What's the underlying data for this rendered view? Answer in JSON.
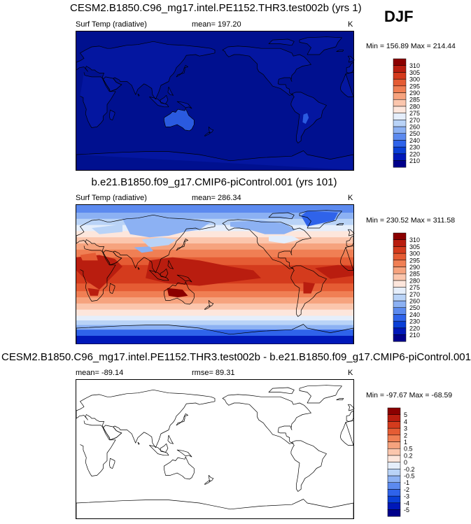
{
  "season": "DJF",
  "colors": {
    "field_palette": [
      "#00008b",
      "#0018b9",
      "#0a3fd6",
      "#2f63ea",
      "#5c8aef",
      "#8cb1f3",
      "#b9d3f7",
      "#e5eefb",
      "#fde6dc",
      "#fbc6ad",
      "#f6a37e",
      "#f07f54",
      "#e55c34",
      "#d43b1d",
      "#b91d0f",
      "#8b0000"
    ],
    "diff_palette": [
      "#00008b",
      "#0018b9",
      "#0a3fd6",
      "#2f63ea",
      "#5c8aef",
      "#8cb1f3",
      "#b9d3f7",
      "#e5eefb",
      "#fde6dc",
      "#fbc6ad",
      "#f6a37e",
      "#f07f54",
      "#e55c34",
      "#d43b1d",
      "#b91d0f",
      "#8b0000"
    ],
    "ocean_panel1": "#00108f",
    "land_panel1": "#0416a0",
    "australia_panel1": "#2a5ae0",
    "coast": "#000000"
  },
  "panels": [
    {
      "title": "CESM2.B1850.C96_mg17.intel.PE1152.THR3.test002b (yrs 1)",
      "variable": "Surf Temp (radiative)",
      "mean_label": "mean= 197.20",
      "rmse_label": "",
      "units": "K",
      "minmax": "Min = 156.89 Max = 214.44",
      "colorbar_levels": [
        "210",
        "220",
        "230",
        "240",
        "250",
        "260",
        "270",
        "275",
        "280",
        "285",
        "290",
        "295",
        "300",
        "305",
        "310"
      ],
      "fill": "cold"
    },
    {
      "title": "b.e21.B1850.f09_g17.CMIP6-piControl.001 (yrs 101)",
      "variable": "Surf Temp (radiative)",
      "mean_label": "mean= 286.34",
      "rmse_label": "",
      "units": "K",
      "minmax": "Min = 230.52 Max = 311.58",
      "colorbar_levels": [
        "210",
        "220",
        "230",
        "240",
        "250",
        "260",
        "270",
        "275",
        "280",
        "285",
        "290",
        "295",
        "300",
        "305",
        "310"
      ],
      "fill": "climate"
    },
    {
      "title": "CESM2.B1850.C96_mg17.intel.PE1152.THR3.test002b - b.e21.B1850.f09_g17.CMIP6-piControl.001",
      "variable": "",
      "mean_label": "mean= -89.14",
      "rmse_label": "rmse=  89.31",
      "units": "K",
      "minmax": "Min = -97.67 Max = -68.59",
      "colorbar_levels": [
        "-5",
        "-4",
        "-3",
        "-2",
        "-1",
        "-0.5",
        "-0.2",
        "0",
        "0.2",
        "0.5",
        "1",
        "2",
        "3",
        "4",
        "5"
      ],
      "fill": "none"
    }
  ],
  "chart_data": [
    {
      "type": "heatmap",
      "title": "CESM2.B1850.C96_mg17.intel.PE1152.THR3.test002b (yrs 1)",
      "variable": "Surf Temp (radiative)",
      "units": "K",
      "mean": 197.2,
      "min": 156.89,
      "max": 214.44,
      "colorbar_levels": [
        210,
        220,
        230,
        240,
        250,
        260,
        270,
        275,
        280,
        285,
        290,
        295,
        300,
        305,
        310
      ],
      "projection": "cylindrical equidistant, centered 180",
      "grid": false
    },
    {
      "type": "heatmap",
      "title": "b.e21.B1850.f09_g17.CMIP6-piControl.001 (yrs 101)",
      "variable": "Surf Temp (radiative)",
      "units": "K",
      "mean": 286.34,
      "min": 230.52,
      "max": 311.58,
      "colorbar_levels": [
        210,
        220,
        230,
        240,
        250,
        260,
        270,
        275,
        280,
        285,
        290,
        295,
        300,
        305,
        310
      ],
      "projection": "cylindrical equidistant, centered 180",
      "grid": false
    },
    {
      "type": "heatmap",
      "title": "CESM2.B1850.C96_mg17.intel.PE1152.THR3.test002b - b.e21.B1850.f09_g17.CMIP6-piControl.001",
      "units": "K",
      "mean": -89.14,
      "rmse": 89.31,
      "min": -97.67,
      "max": -68.59,
      "colorbar_levels": [
        -5,
        -4,
        -3,
        -2,
        -1,
        -0.5,
        -0.2,
        0,
        0.2,
        0.5,
        1,
        2,
        3,
        4,
        5
      ],
      "projection": "cylindrical equidistant, centered 180",
      "grid": false
    }
  ]
}
